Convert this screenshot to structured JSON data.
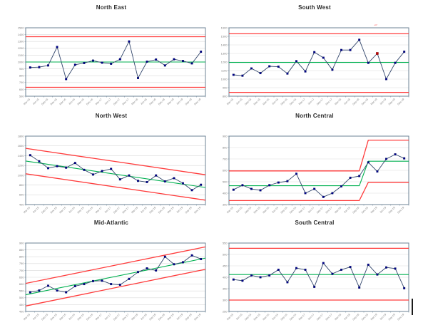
{
  "colors": {
    "series_line": "#31456b",
    "marker": "#00008b",
    "marker_edge": "#001050",
    "special_marker": "#c00000",
    "center_line": "#00b050",
    "limit_line": "#ff3b3b",
    "frame": "#6d8396",
    "grid": "#d9d9d9",
    "tick_text": "#808080"
  },
  "annotation": {
    "mark": "~"
  },
  "chart_data": [
    {
      "type": "line",
      "title": "North East",
      "categories": [
        "Mar-15",
        "Jun-15",
        "Sep-15",
        "Dec-15",
        "Mar-16",
        "Jun-16",
        "Sep-16",
        "Dec-16",
        "Mar-17",
        "Jun-17",
        "Sep-17",
        "Dec-17",
        "Mar-18",
        "Jun-18",
        "Sep-18",
        "Dec-18",
        "Mar-19",
        "Jun-19",
        "Sep-19",
        "Dec-19"
      ],
      "values": [
        920,
        925,
        950,
        1220,
        750,
        960,
        985,
        1020,
        990,
        975,
        1040,
        1300,
        765,
        1005,
        1035,
        950,
        1040,
        1015,
        980,
        1150
      ],
      "ylim": [
        500,
        1500
      ],
      "ytick": 100,
      "center_line": {
        "type": "flat",
        "value": 1000
      },
      "ucl": {
        "type": "flat",
        "value": 1370
      },
      "lcl": {
        "type": "flat",
        "value": 630
      },
      "special_point_index": null
    },
    {
      "type": "line",
      "title": "South West",
      "categories": [
        "Mar-15",
        "Jun-15",
        "Sep-15",
        "Dec-15",
        "Mar-16",
        "Jun-16",
        "Sep-16",
        "Dec-16",
        "Mar-17",
        "Jun-17",
        "Sep-17",
        "Dec-17",
        "Mar-18",
        "Jun-18",
        "Sep-18",
        "Dec-18",
        "Mar-19",
        "Jun-19",
        "Sep-19",
        "Dec-19"
      ],
      "values": [
        1050,
        1040,
        1125,
        1070,
        1150,
        1145,
        1065,
        1210,
        1090,
        1315,
        1250,
        1110,
        1340,
        1340,
        1460,
        1190,
        1300,
        1000,
        1190,
        1320
      ],
      "ylim": [
        800,
        1600
      ],
      "ytick": 100,
      "center_line": {
        "type": "flat",
        "value": 1195
      },
      "ucl": {
        "type": "flat",
        "value": 1530
      },
      "lcl": {
        "type": "flat",
        "value": 845
      },
      "special_point_index": 16
    },
    {
      "type": "line",
      "title": "North West",
      "categories": [
        "Mar-15",
        "Jun-15",
        "Sep-15",
        "Dec-15",
        "Mar-16",
        "Jun-16",
        "Sep-16",
        "Dec-16",
        "Mar-17",
        "Jun-17",
        "Sep-17",
        "Dec-17",
        "Mar-18",
        "Jun-18",
        "Sep-18",
        "Dec-18",
        "Mar-19",
        "Jun-19",
        "Sep-19",
        "Dec-19"
      ],
      "values": [
        1410,
        1285,
        1145,
        1185,
        1155,
        1250,
        1110,
        1015,
        1085,
        1130,
        915,
        995,
        885,
        860,
        995,
        875,
        940,
        835,
        695,
        805
      ],
      "ylim": [
        400,
        1800
      ],
      "ytick": 200,
      "center_line": {
        "type": "trend",
        "start": 1290,
        "end": 750
      },
      "ucl": {
        "type": "trend",
        "start": 1550,
        "end": 1010
      },
      "lcl": {
        "type": "trend",
        "start": 1030,
        "end": 490
      },
      "special_point_index": null
    },
    {
      "type": "line",
      "title": "North Central",
      "categories": [
        "Mar-15",
        "Jun-15",
        "Sep-15",
        "Dec-15",
        "Mar-16",
        "Jun-16",
        "Sep-16",
        "Dec-16",
        "Mar-17",
        "Jun-17",
        "Sep-17",
        "Dec-17",
        "Mar-18",
        "Jun-18",
        "Sep-18",
        "Dec-18",
        "Mar-19",
        "Jun-19",
        "Sep-19",
        "Dec-19"
      ],
      "values": [
        430,
        470,
        437,
        425,
        470,
        493,
        505,
        570,
        400,
        437,
        367,
        400,
        460,
        535,
        550,
        670,
        590,
        700,
        740,
        705
      ],
      "ylim": [
        300,
        900
      ],
      "ytick": 100,
      "center_line": {
        "type": "step",
        "before": 465,
        "after": 680,
        "ramp_from": 14,
        "ramp_to": 15
      },
      "ucl": {
        "type": "step",
        "before": 595,
        "after": 865,
        "ramp_from": 14,
        "ramp_to": 15
      },
      "lcl": {
        "type": "step",
        "before": 335,
        "after": 495,
        "ramp_from": 14,
        "ramp_to": 15
      },
      "special_point_index": null
    },
    {
      "type": "line",
      "title": "Mid-Atlantic",
      "categories": [
        "Mar-15",
        "Jun-15",
        "Sep-15",
        "Dec-15",
        "Mar-16",
        "Jun-16",
        "Sep-16",
        "Dec-16",
        "Mar-17",
        "Jun-17",
        "Sep-17",
        "Dec-17",
        "Mar-18",
        "Jun-18",
        "Sep-18",
        "Dec-18",
        "Mar-19",
        "Jun-19",
        "Sep-19",
        "Dec-19"
      ],
      "values": [
        540,
        553,
        588,
        553,
        540,
        585,
        600,
        622,
        625,
        600,
        595,
        638,
        688,
        715,
        700,
        800,
        745,
        760,
        810,
        783
      ],
      "ylim": [
        400,
        900
      ],
      "ytick": 50,
      "center_line": {
        "type": "trend",
        "start": 522,
        "end": 790
      },
      "ucl": {
        "type": "trend",
        "start": 605,
        "end": 872
      },
      "lcl": {
        "type": "trend",
        "start": 440,
        "end": 708
      },
      "special_point_index": null
    },
    {
      "type": "line",
      "title": "South Central",
      "categories": [
        "Mar-15",
        "Jun-15",
        "Sep-15",
        "Dec-15",
        "Mar-16",
        "Jun-16",
        "Sep-16",
        "Dec-16",
        "Mar-17",
        "Jun-17",
        "Sep-17",
        "Dec-17",
        "Mar-18",
        "Jun-18",
        "Sep-18",
        "Dec-18",
        "Mar-19",
        "Jun-19",
        "Sep-19",
        "Dec-19"
      ],
      "values": [
        390,
        385,
        408,
        400,
        408,
        433,
        378,
        440,
        433,
        358,
        462,
        415,
        433,
        445,
        355,
        455,
        412,
        443,
        438,
        352
      ],
      "ylim": [
        250,
        550
      ],
      "ytick": 50,
      "center_line": {
        "type": "flat",
        "value": 412
      },
      "ucl": {
        "type": "flat",
        "value": 527
      },
      "lcl": {
        "type": "flat",
        "value": 300
      },
      "special_point_index": null
    }
  ]
}
